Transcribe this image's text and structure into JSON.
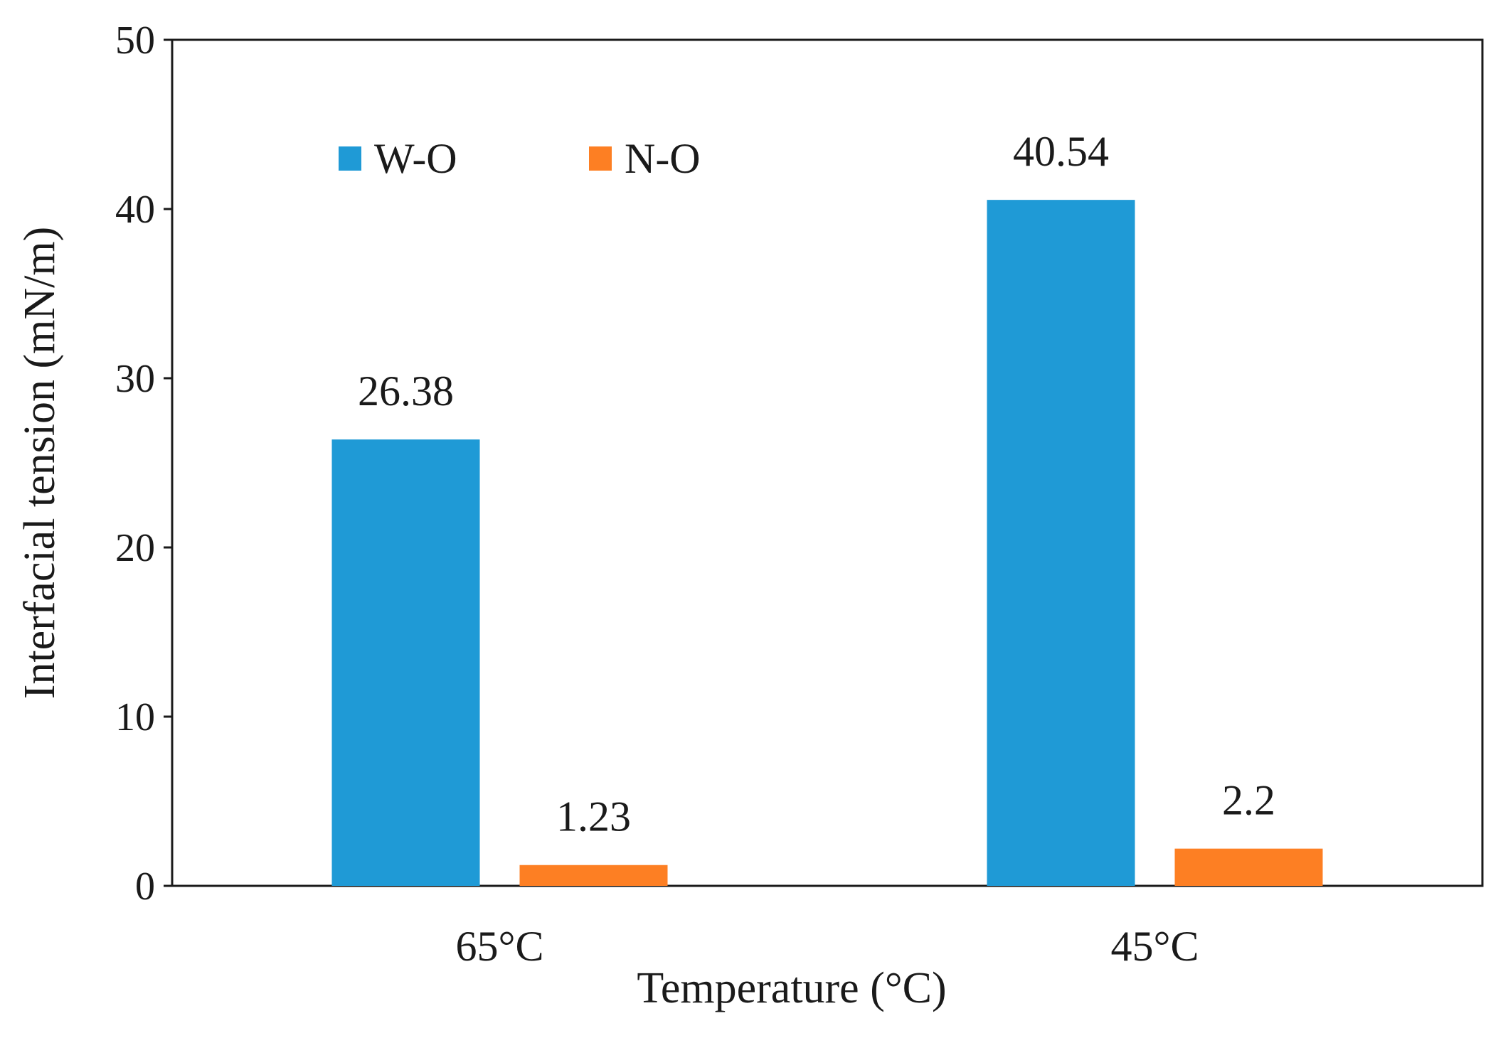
{
  "chart_data": {
    "type": "bar",
    "title": "",
    "xlabel": "Temperature (°C)",
    "ylabel": "Interfacial tension (mN/m)",
    "categories": [
      "65°C",
      "45°C"
    ],
    "series": [
      {
        "name": "W-O",
        "color": "#1f9ad6",
        "values": [
          26.38,
          40.54
        ],
        "labels": [
          "26.38",
          "40.54"
        ]
      },
      {
        "name": "N-O",
        "color": "#fd7f23",
        "values": [
          1.23,
          2.2
        ],
        "labels": [
          "1.23",
          "2.2"
        ]
      }
    ],
    "ylim": [
      0,
      50
    ],
    "yticks": [
      0,
      10,
      20,
      30,
      40,
      50
    ],
    "ytick_labels": [
      "0",
      "10",
      "20",
      "30",
      "40",
      "50"
    ],
    "grid": false,
    "legend_position": "top-left"
  }
}
